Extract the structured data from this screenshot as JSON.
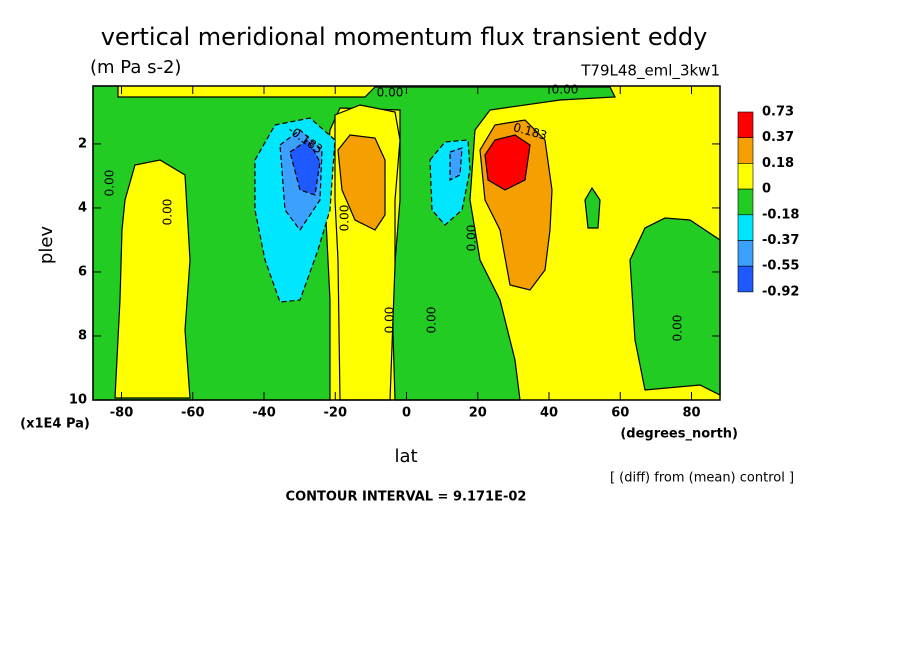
{
  "chart_data": {
    "type": "contour",
    "title": "vertical meridional momentum flux transient eddy",
    "subtitle": "(m Pa s-2)",
    "dataset": "T79L48_eml_3kw1",
    "x_label": "lat",
    "x_units": "(degrees_north)",
    "y_label": "plev",
    "y_units": "(x1E4 Pa)",
    "note": "[ (diff) from (mean) control ]",
    "contour_interval": "CONTOUR INTERVAL = 9.171E-02",
    "xlim": [
      -88,
      88
    ],
    "xticks": [
      -80,
      -60,
      -40,
      -20,
      0,
      20,
      40,
      60,
      80
    ],
    "ylim": [
      10,
      0.19
    ],
    "yticks": [
      2,
      4,
      6,
      8,
      10
    ],
    "levels": [
      0.73,
      0.37,
      0.18,
      0,
      -0.18,
      -0.37,
      -0.55,
      -0.92
    ],
    "colors": [
      "#ff0000",
      "#f5a000",
      "#ffff00",
      "#22cc22",
      "#00e6ff",
      "#3ca0ff",
      "#1e5aff"
    ],
    "contour_labels": [
      "0.00",
      "0.00",
      "0.00",
      "0.00",
      "0.00",
      "0.00",
      "0.00",
      "0.00",
      "0.00",
      "-0.183",
      "0.183"
    ]
  }
}
